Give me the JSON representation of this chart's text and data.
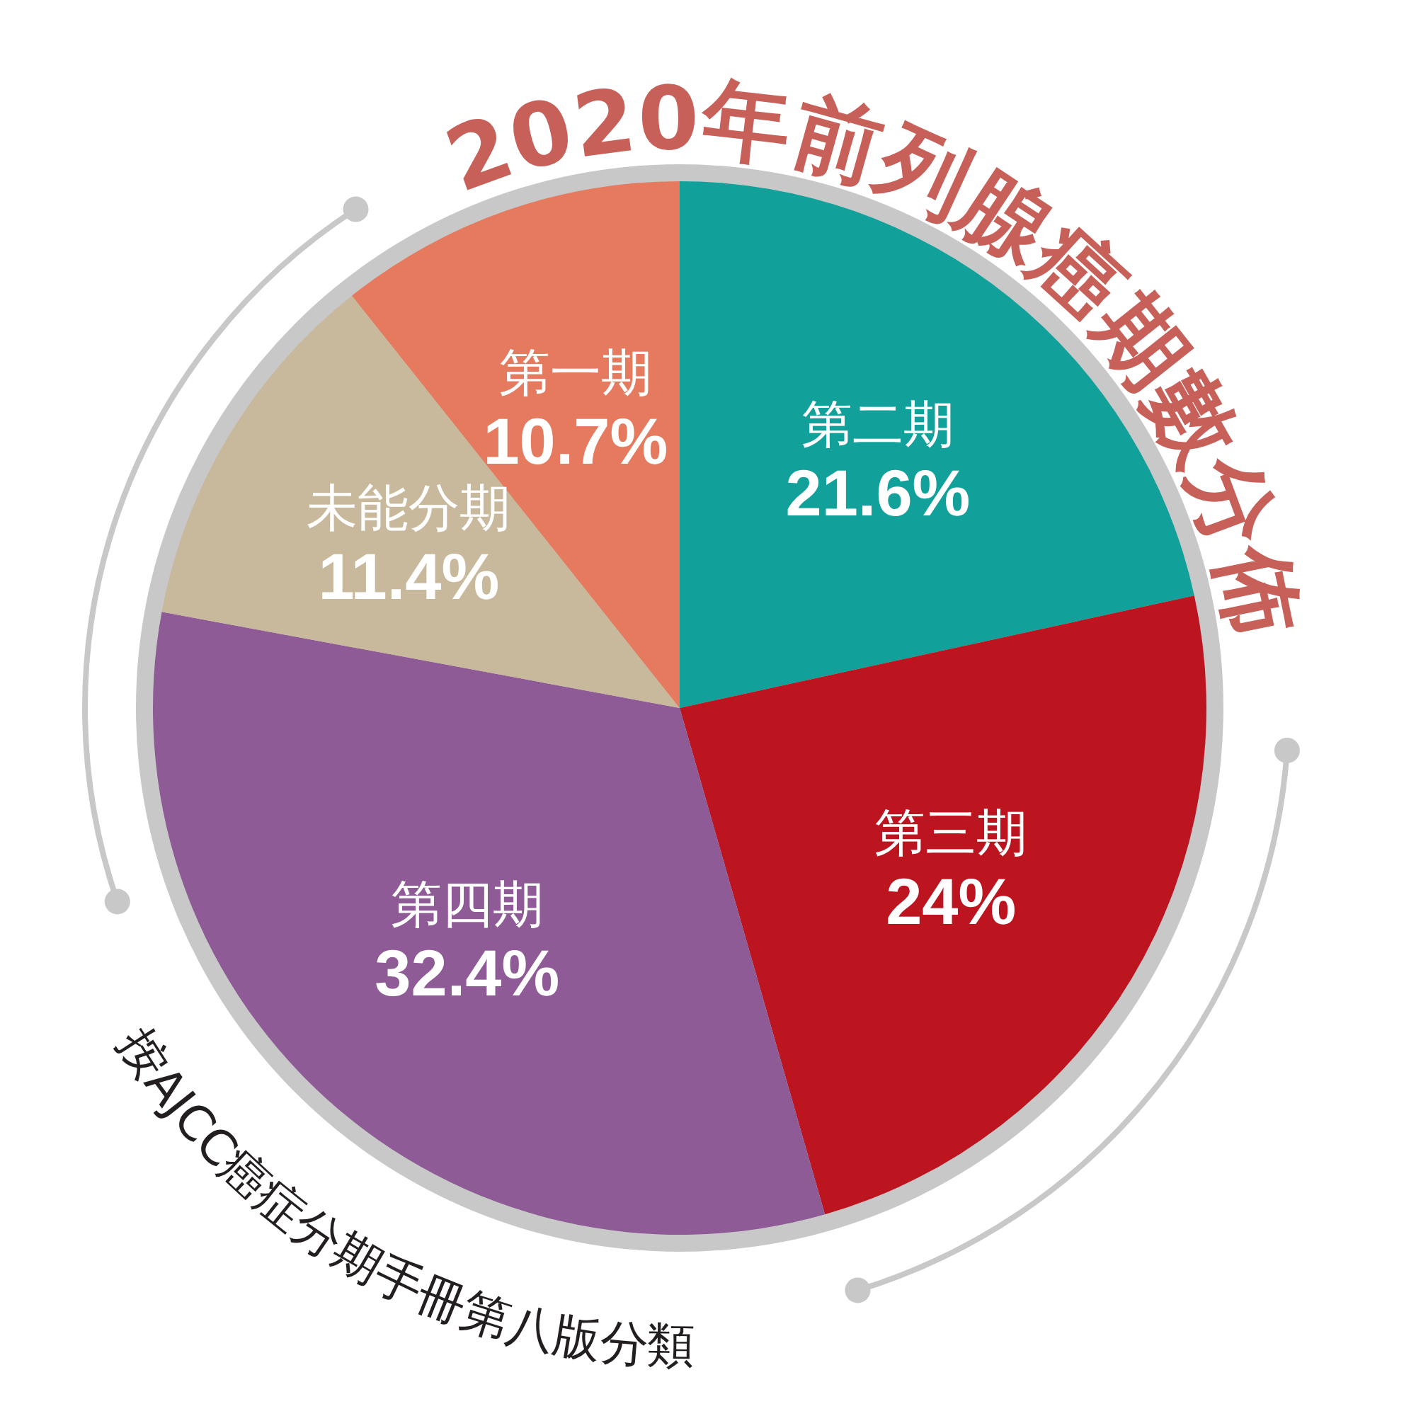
{
  "chart_data": {
    "type": "pie",
    "title": "2020年前列腺癌期數分佈",
    "categories": [
      "第二期",
      "第三期",
      "第四期",
      "未能分期",
      "第一期"
    ],
    "values": [
      21.6,
      24,
      32.4,
      11.4,
      10.7
    ],
    "colors": [
      "#12a19a",
      "#bc1520",
      "#8e5b96",
      "#c9b99c",
      "#e57a5e"
    ],
    "value_labels": [
      "21.6%",
      "24%",
      "32.4%",
      "11.4%",
      "10.7%"
    ],
    "annotations": [
      "按AJCC癌症分期手冊第八版分類"
    ]
  }
}
